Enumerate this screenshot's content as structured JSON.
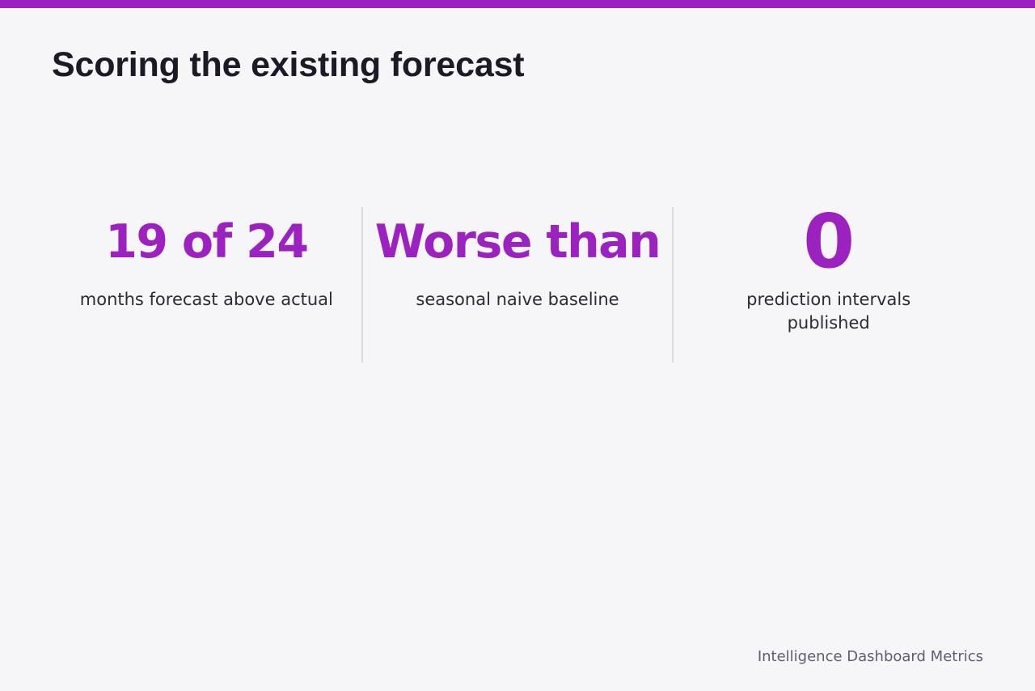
{
  "colors": {
    "accent": "#9b22bf",
    "title": "#1b1a26",
    "background": "#f6f6f9",
    "footer": "#5e5d72"
  },
  "title": "Scoring the existing forecast",
  "stats": [
    {
      "value": "19 of 24",
      "label": "months forecast above actual"
    },
    {
      "value": "Worse than",
      "label": "seasonal naive baseline"
    },
    {
      "value": "0",
      "label": "prediction intervals published"
    }
  ],
  "footer": "Intelligence Dashboard Metrics"
}
